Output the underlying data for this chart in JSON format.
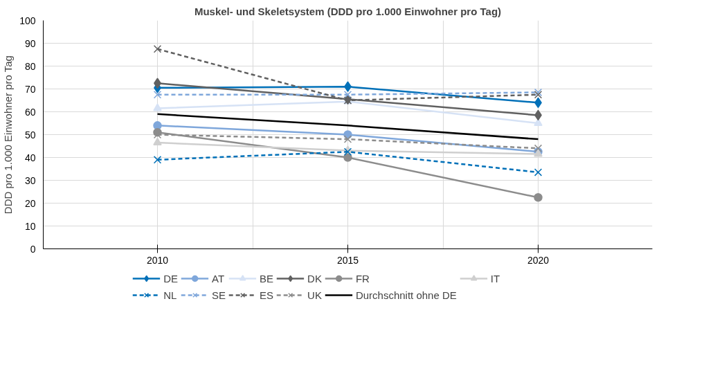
{
  "chart_data": {
    "type": "line",
    "title": "Muskel- und Skeletsystem (DDD pro 1.000 Einwohner pro Tag)",
    "ylabel": "DDD pro 1.000 Einwohner pro Tag",
    "x": [
      2010,
      2015,
      2020
    ],
    "xlim": [
      2007,
      2023
    ],
    "xticks": [
      2010,
      {
        "value": 2012.5,
        "label": null
      },
      2015,
      {
        "value": 2017.5,
        "label": null
      },
      2020
    ],
    "ylim": [
      0,
      100
    ],
    "yticks": [
      0,
      10,
      20,
      30,
      40,
      50,
      60,
      70,
      80,
      90,
      100
    ],
    "grid": true,
    "legend": "bottom",
    "series": [
      {
        "name": "DE",
        "color": "#0070b8",
        "values": [
          70.5,
          71,
          64
        ],
        "marker": "diamond",
        "line_style": "solid"
      },
      {
        "name": "AT",
        "color": "#7fa7db",
        "values": [
          54,
          50,
          42.5
        ],
        "marker": "circle",
        "line_style": "solid"
      },
      {
        "name": "BE",
        "color": "#d6e2f5",
        "values": [
          61.5,
          64.5,
          55
        ],
        "marker": "triangle",
        "line_style": "solid"
      },
      {
        "name": "DK",
        "color": "#606060",
        "values": [
          72.5,
          65.5,
          58.5
        ],
        "marker": "diamond",
        "line_style": "solid"
      },
      {
        "name": "FR",
        "color": "#8c8c8c",
        "values": [
          51,
          40,
          22.5
        ],
        "marker": "circle",
        "line_style": "solid"
      },
      {
        "name": "IT",
        "color": "#cfcfcf",
        "values": [
          46.5,
          43,
          41.5
        ],
        "marker": "triangle",
        "line_style": "solid"
      },
      {
        "name": "NL",
        "color": "#0070b8",
        "values": [
          39,
          42.5,
          33.5
        ],
        "marker": "cross",
        "line_style": "dashed"
      },
      {
        "name": "SE",
        "color": "#7fa7db",
        "values": [
          67.5,
          67.5,
          68.5
        ],
        "marker": "cross",
        "line_style": "dashed"
      },
      {
        "name": "ES",
        "color": "#606060",
        "values": [
          87.5,
          65,
          67.5
        ],
        "marker": "cross",
        "line_style": "dashed"
      },
      {
        "name": "UK",
        "color": "#8c8c8c",
        "values": [
          50,
          48,
          44
        ],
        "marker": "cross",
        "line_style": "dashed"
      },
      {
        "name": "Durchschnitt ohne DE",
        "color": "#000000",
        "values": [
          59,
          54,
          48
        ],
        "marker": "none",
        "line_style": "solid"
      }
    ]
  }
}
